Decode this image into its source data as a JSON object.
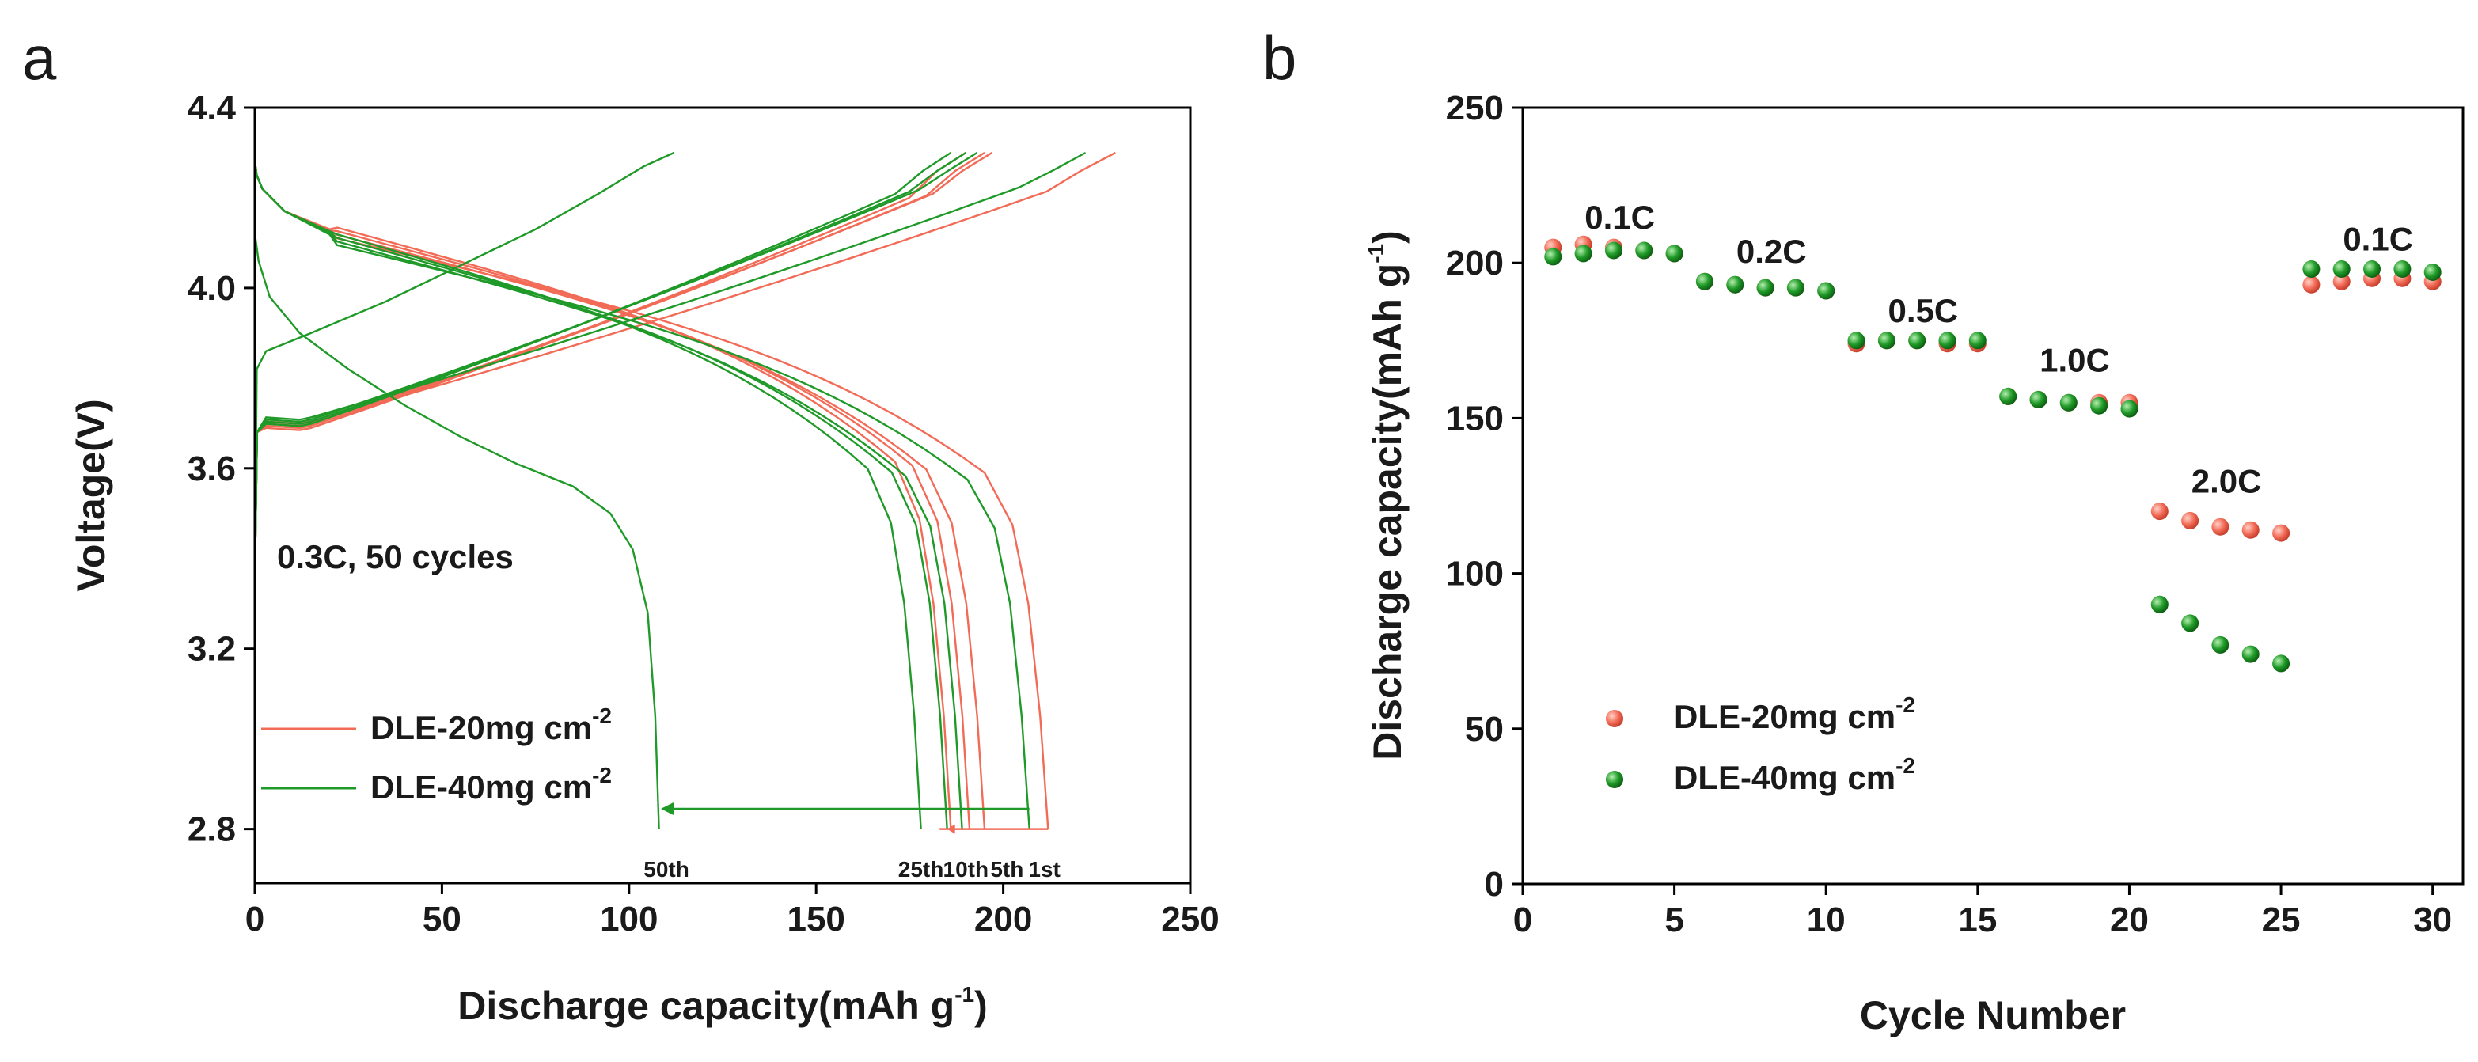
{
  "colors": {
    "red": "#f26b57",
    "green": "#1f9a28",
    "red_dark": "#d9412e",
    "green_dark": "#0f6e16"
  },
  "chart_data": [
    {
      "panel": "a",
      "type": "line",
      "title": "",
      "xlabel": "Discharge capacity(mAh g",
      "xlabel_sup": "-1",
      "xlabel_end": ")",
      "ylabel": "Voltage(V)",
      "xlim": [
        0,
        250
      ],
      "ylim": [
        2.68,
        4.4
      ],
      "xticks": [
        0,
        50,
        100,
        150,
        200,
        250
      ],
      "yticks": [
        2.8,
        3.2,
        3.6,
        4.0,
        4.4
      ],
      "yticks_labels": [
        "2.8",
        "3.2",
        "3.6",
        "4.0",
        "4.4"
      ],
      "grid": false,
      "annotation": "0.3C, 50 cycles",
      "legend": [
        {
          "name": "DLE-20mg cm",
          "sup": "-2",
          "color": "red"
        },
        {
          "name": "DLE-40mg cm",
          "sup": "-2",
          "color": "green"
        }
      ],
      "legend_position": "bottom-left",
      "arrow": {
        "from_x": 207,
        "to_x": 108,
        "y": 2.845,
        "color": "green"
      },
      "cycle_labels": [
        {
          "text": "50th",
          "x": 110
        },
        {
          "text": "25th",
          "x": 178
        },
        {
          "text": "10th",
          "x": 190
        },
        {
          "text": "5th",
          "x": 201
        },
        {
          "text": "1st",
          "x": 211
        }
      ],
      "series": [
        {
          "name": "DLE-20mg cm-2 1st",
          "color": "red",
          "discharge_capacity": 212,
          "charge_capacity": 230
        },
        {
          "name": "DLE-20mg cm-2 5th",
          "color": "red",
          "discharge_capacity": 195,
          "charge_capacity": 197
        },
        {
          "name": "DLE-20mg cm-2 10th",
          "color": "red",
          "discharge_capacity": 191,
          "charge_capacity": 195
        },
        {
          "name": "DLE-20mg cm-2 25th",
          "color": "red",
          "discharge_capacity": 186,
          "charge_capacity": 190
        },
        {
          "name": "DLE-40mg cm-2 1st",
          "color": "green",
          "discharge_capacity": 207,
          "charge_capacity": 222
        },
        {
          "name": "DLE-40mg cm-2 5th",
          "color": "green",
          "discharge_capacity": 189,
          "charge_capacity": 193
        },
        {
          "name": "DLE-40mg cm-2 10th",
          "color": "green",
          "discharge_capacity": 185,
          "charge_capacity": 190
        },
        {
          "name": "DLE-40mg cm-2 25th",
          "color": "green",
          "discharge_capacity": 178,
          "charge_capacity": 186
        },
        {
          "name": "DLE-40mg cm-2 50th",
          "color": "green",
          "discharge_capacity": 108,
          "charge_capacity": 112
        }
      ]
    },
    {
      "panel": "b",
      "type": "scatter",
      "title": "",
      "xlabel": "Cycle Number",
      "ylabel": "Discharge capacity(mAh g",
      "ylabel_sup": "-1",
      "ylabel_end": ")",
      "xlim": [
        0,
        31
      ],
      "ylim": [
        0,
        250
      ],
      "xticks": [
        0,
        5,
        10,
        15,
        20,
        25,
        30
      ],
      "yticks": [
        0,
        50,
        100,
        150,
        200,
        250
      ],
      "grid": false,
      "legend": [
        {
          "name": "DLE-20mg cm",
          "sup": "-2",
          "color": "red"
        },
        {
          "name": "DLE-40mg cm",
          "sup": "-2",
          "color": "green"
        }
      ],
      "legend_position": "bottom-left",
      "rate_labels": [
        {
          "text": "0.1C",
          "x": 3.2,
          "y": 211
        },
        {
          "text": "0.2C",
          "x": 8.2,
          "y": 200
        },
        {
          "text": "0.5C",
          "x": 13.2,
          "y": 181
        },
        {
          "text": "1.0C",
          "x": 18.2,
          "y": 165
        },
        {
          "text": "2.0C",
          "x": 23.2,
          "y": 126
        },
        {
          "text": "0.1C",
          "x": 28.2,
          "y": 204
        }
      ],
      "x": [
        1,
        2,
        3,
        4,
        5,
        6,
        7,
        8,
        9,
        10,
        11,
        12,
        13,
        14,
        15,
        16,
        17,
        18,
        19,
        20,
        21,
        22,
        23,
        24,
        25,
        26,
        27,
        28,
        29,
        30
      ],
      "series": [
        {
          "name": "DLE-20mg cm-2",
          "color": "red",
          "values": [
            205,
            206,
            205,
            204,
            203,
            194,
            193,
            192,
            192,
            191,
            174,
            175,
            175,
            174,
            174,
            157,
            156,
            155,
            155,
            155,
            120,
            117,
            115,
            114,
            113,
            193,
            194,
            195,
            195,
            194
          ]
        },
        {
          "name": "DLE-40mg cm-2",
          "color": "green",
          "values": [
            202,
            203,
            204,
            204,
            203,
            194,
            193,
            192,
            192,
            191,
            175,
            175,
            175,
            175,
            175,
            157,
            156,
            155,
            154,
            153,
            90,
            84,
            77,
            74,
            71,
            198,
            198,
            198,
            198,
            197
          ]
        }
      ]
    }
  ]
}
